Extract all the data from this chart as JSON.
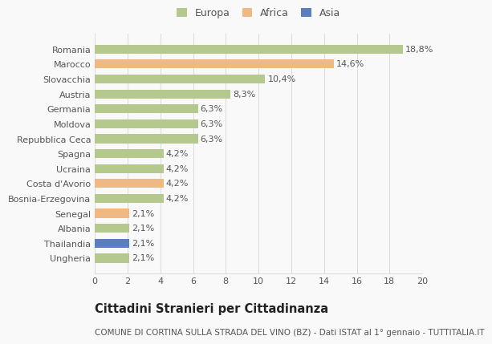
{
  "categories": [
    "Ungheria",
    "Thailandia",
    "Albania",
    "Senegal",
    "Bosnia-Erzegovina",
    "Costa d'Avorio",
    "Ucraina",
    "Spagna",
    "Repubblica Ceca",
    "Moldova",
    "Germania",
    "Austria",
    "Slovacchia",
    "Marocco",
    "Romania"
  ],
  "values": [
    2.1,
    2.1,
    2.1,
    2.1,
    4.2,
    4.2,
    4.2,
    4.2,
    6.3,
    6.3,
    6.3,
    8.3,
    10.4,
    14.6,
    18.8
  ],
  "labels": [
    "2,1%",
    "2,1%",
    "2,1%",
    "2,1%",
    "4,2%",
    "4,2%",
    "4,2%",
    "4,2%",
    "6,3%",
    "6,3%",
    "6,3%",
    "8,3%",
    "10,4%",
    "14,6%",
    "18,8%"
  ],
  "continents": [
    "Europa",
    "Asia",
    "Europa",
    "Africa",
    "Europa",
    "Africa",
    "Europa",
    "Europa",
    "Europa",
    "Europa",
    "Europa",
    "Europa",
    "Europa",
    "Africa",
    "Europa"
  ],
  "colors": {
    "Europa": "#b5c98e",
    "Africa": "#f0b882",
    "Asia": "#5b7fbe"
  },
  "xlim": [
    0,
    20
  ],
  "xticks": [
    0,
    2,
    4,
    6,
    8,
    10,
    12,
    14,
    16,
    18,
    20
  ],
  "title": "Cittadini Stranieri per Cittadinanza",
  "subtitle": "COMUNE DI CORTINA SULLA STRADA DEL VINO (BZ) - Dati ISTAT al 1° gennaio - TUTTITALIA.IT",
  "background_color": "#f9f9f9",
  "bar_height": 0.6,
  "grid_color": "#dddddd",
  "text_color": "#555555",
  "label_fontsize": 8,
  "tick_fontsize": 8,
  "title_fontsize": 10.5,
  "subtitle_fontsize": 7.5,
  "legend_fontsize": 9
}
